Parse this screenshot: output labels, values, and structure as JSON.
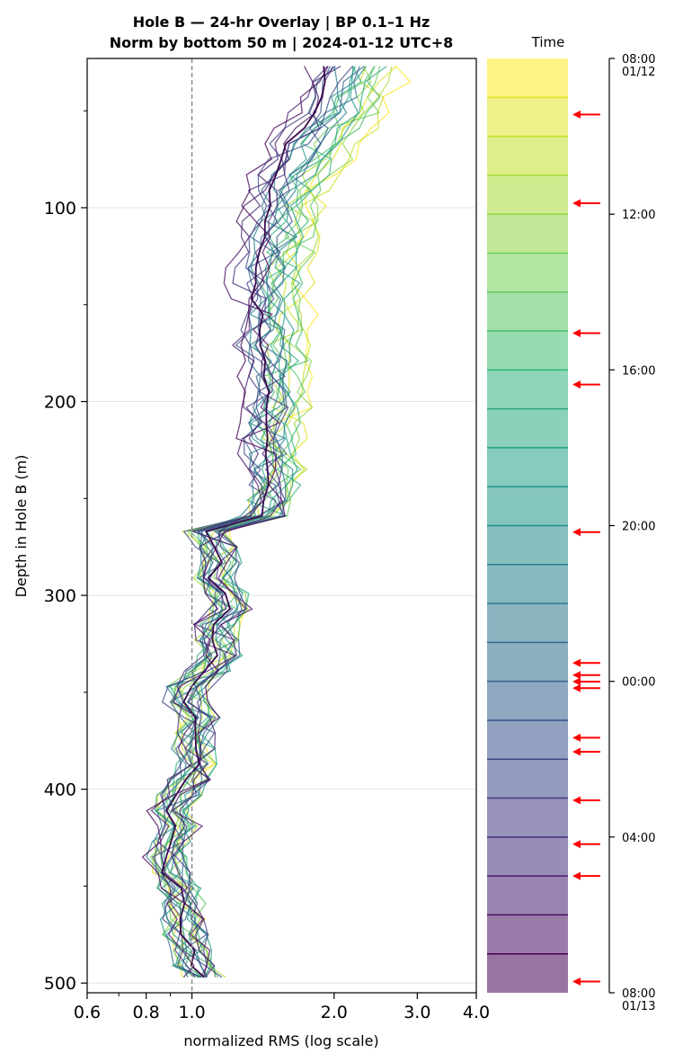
{
  "chart_data": {
    "type": "line",
    "title": "Hole B — 24-hr Overlay  |  BP 0.1–1 Hz",
    "subtitle": "Norm by bottom 50 m  |  2024-01-12 UTC+8",
    "xlabel": "normalized RMS  (log scale)",
    "ylabel": "Depth in Hole B (m)",
    "x_scale": "log",
    "xlim": [
      0.6,
      4.0
    ],
    "ylim": [
      505,
      23
    ],
    "x_ticks": [
      {
        "value": 0.6,
        "label": "0.6"
      },
      {
        "value": 0.8,
        "label": "0.8"
      },
      {
        "value": 1.0,
        "label": "1.0"
      },
      {
        "value": 2.0,
        "label": "2.0"
      },
      {
        "value": 3.0,
        "label": "3.0"
      },
      {
        "value": 4.0,
        "label": "4.0"
      }
    ],
    "y_ticks": [
      {
        "value": 100,
        "label": "100"
      },
      {
        "value": 200,
        "label": "200"
      },
      {
        "value": 300,
        "label": "300"
      },
      {
        "value": 400,
        "label": "400"
      },
      {
        "value": 500,
        "label": "500"
      }
    ],
    "reference_line_x": 1.0,
    "grid": "horizontal",
    "depth": [
      27,
      35,
      43,
      51,
      59,
      67,
      75,
      83,
      91,
      99,
      107,
      115,
      123,
      131,
      139,
      147,
      155,
      163,
      171,
      179,
      187,
      195,
      203,
      211,
      219,
      227,
      235,
      243,
      251,
      259,
      267,
      275,
      283,
      291,
      299,
      307,
      315,
      323,
      331,
      339,
      347,
      355,
      363,
      371,
      379,
      387,
      395,
      403,
      411,
      419,
      427,
      435,
      443,
      451,
      459,
      467,
      475,
      483,
      491,
      497
    ],
    "median_profile": [
      1.95,
      1.9,
      1.85,
      1.82,
      1.72,
      1.62,
      1.58,
      1.52,
      1.46,
      1.44,
      1.44,
      1.41,
      1.4,
      1.38,
      1.37,
      1.37,
      1.39,
      1.41,
      1.39,
      1.44,
      1.43,
      1.44,
      1.47,
      1.44,
      1.43,
      1.45,
      1.46,
      1.48,
      1.45,
      1.42,
      1.07,
      1.12,
      1.14,
      1.11,
      1.18,
      1.21,
      1.13,
      1.12,
      1.14,
      1.08,
      0.99,
      0.97,
      1.04,
      1.01,
      1.01,
      1.02,
      0.98,
      0.94,
      0.9,
      0.94,
      0.91,
      0.88,
      0.89,
      0.94,
      0.96,
      0.96,
      0.97,
      1.0,
      1.02,
      1.05
    ],
    "colorbar": {
      "label": "Time",
      "ticks": [
        {
          "frac": 0.0,
          "label": "08:00",
          "sublabel": "01/12"
        },
        {
          "frac": 0.1667,
          "label": "12:00"
        },
        {
          "frac": 0.3333,
          "label": "16:00"
        },
        {
          "frac": 0.5,
          "label": "20:00"
        },
        {
          "frac": 0.6667,
          "label": "00:00"
        },
        {
          "frac": 0.8333,
          "label": "04:00"
        },
        {
          "frac": 1.0,
          "label": "08:00",
          "sublabel": "01/13"
        }
      ],
      "bands": 24,
      "colormap": [
        "#440154",
        "#482878",
        "#3e4989",
        "#31688e",
        "#26828e",
        "#1f9e89",
        "#35b779",
        "#6ece58",
        "#b5de2b",
        "#fde725"
      ],
      "arrow_color": "#ff0000",
      "arrow_fracs": [
        0.06,
        0.155,
        0.294,
        0.349,
        0.507,
        0.647,
        0.66,
        0.667,
        0.674,
        0.727,
        0.742,
        0.794,
        0.841,
        0.875,
        0.988
      ]
    },
    "series_count": 24
  }
}
